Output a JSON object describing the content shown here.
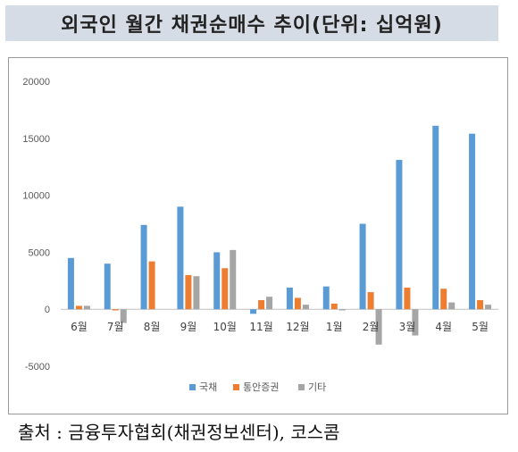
{
  "header": {
    "title": "외국인 월간 채권순매수 추이(단위: 십억원)"
  },
  "footer": {
    "source": "출처 : 금융투자협회(채권정보센터), 코스콤"
  },
  "chart_data": {
    "type": "bar",
    "title": "",
    "xlabel": "",
    "ylabel": "",
    "categories": [
      "6월",
      "7월",
      "8월",
      "9월",
      "10월",
      "11월",
      "12월",
      "1월",
      "2월",
      "3월",
      "4월",
      "5월"
    ],
    "ylim": [
      -5000,
      20000
    ],
    "yticks": [
      -5000,
      0,
      5000,
      10000,
      15000,
      20000
    ],
    "ytick_labels": [
      "-5000",
      "0",
      "5000",
      "10000",
      "15000",
      "20000"
    ],
    "grid": false,
    "legend_position": "bottom",
    "series": [
      {
        "name": "국채",
        "color": "#5b9bd5",
        "values": [
          4500,
          4000,
          7400,
          9000,
          5000,
          -400,
          1900,
          2000,
          7500,
          13100,
          16100,
          15400
        ]
      },
      {
        "name": "통안증권",
        "color": "#ed7d31",
        "values": [
          300,
          -100,
          4200,
          3000,
          3600,
          800,
          1000,
          500,
          1500,
          1900,
          1800,
          800
        ]
      },
      {
        "name": "기타",
        "color": "#a5a5a5",
        "values": [
          300,
          -1200,
          0,
          2900,
          5200,
          1100,
          400,
          -100,
          -3100,
          -2300,
          600,
          400
        ]
      }
    ]
  }
}
